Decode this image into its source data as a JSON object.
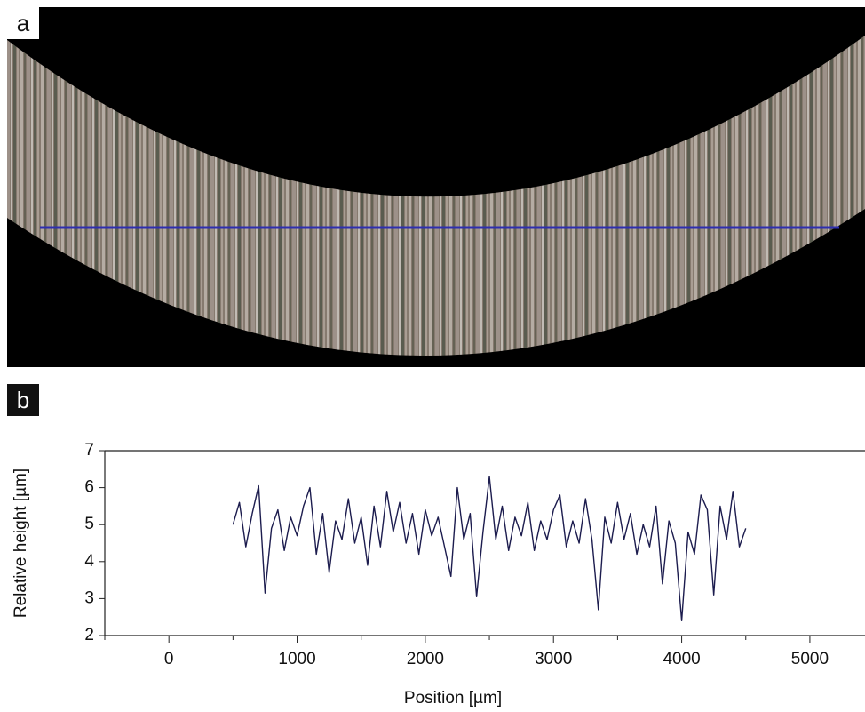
{
  "panel_a_label": "a",
  "chart_data": {
    "type": "line",
    "panel_label": "b",
    "x_label": "Position [µm]",
    "y_label": "Relative height [µm]",
    "xlim": [
      -500,
      5430
    ],
    "ylim": [
      2,
      7
    ],
    "xticks": [
      0,
      1000,
      2000,
      3000,
      4000,
      5000
    ],
    "xminorticks": [
      -500,
      500,
      1500,
      2500,
      3500,
      4500
    ],
    "yticks": [
      2,
      3,
      4,
      5,
      6,
      7
    ],
    "x": [
      500,
      550,
      600,
      650,
      700,
      750,
      800,
      850,
      900,
      950,
      1000,
      1050,
      1100,
      1150,
      1200,
      1250,
      1300,
      1350,
      1400,
      1450,
      1500,
      1550,
      1600,
      1650,
      1700,
      1750,
      1800,
      1850,
      1900,
      1950,
      2000,
      2050,
      2100,
      2150,
      2200,
      2250,
      2300,
      2350,
      2400,
      2450,
      2500,
      2550,
      2600,
      2650,
      2700,
      2750,
      2800,
      2850,
      2900,
      2950,
      3000,
      3050,
      3100,
      3150,
      3200,
      3250,
      3300,
      3350,
      3400,
      3450,
      3500,
      3550,
      3600,
      3650,
      3700,
      3750,
      3800,
      3850,
      3900,
      3950,
      4000,
      4050,
      4100,
      4150,
      4200,
      4250,
      4300,
      4350,
      4400,
      4450,
      4500
    ],
    "series": [
      {
        "color": "#1c1c4e",
        "values": [
          5.0,
          5.6,
          4.4,
          5.3,
          6.05,
          3.15,
          4.9,
          5.4,
          4.3,
          5.2,
          4.7,
          5.5,
          6.0,
          4.2,
          5.3,
          3.7,
          5.1,
          4.6,
          5.7,
          4.5,
          5.2,
          3.9,
          5.5,
          4.4,
          5.9,
          4.8,
          5.6,
          4.5,
          5.3,
          4.2,
          5.4,
          4.7,
          5.2,
          4.4,
          3.6,
          6.0,
          4.6,
          5.3,
          3.05,
          4.8,
          6.3,
          4.6,
          5.5,
          4.3,
          5.2,
          4.7,
          5.6,
          4.3,
          5.1,
          4.6,
          5.4,
          5.8,
          4.4,
          5.1,
          4.5,
          5.7,
          4.6,
          2.7,
          5.2,
          4.5,
          5.6,
          4.6,
          5.3,
          4.2,
          5.0,
          4.4,
          5.5,
          3.4,
          5.1,
          4.5,
          2.4,
          4.8,
          4.2,
          5.8,
          5.4,
          3.1,
          5.5,
          4.6,
          5.9,
          4.4,
          4.9
        ]
      }
    ]
  }
}
